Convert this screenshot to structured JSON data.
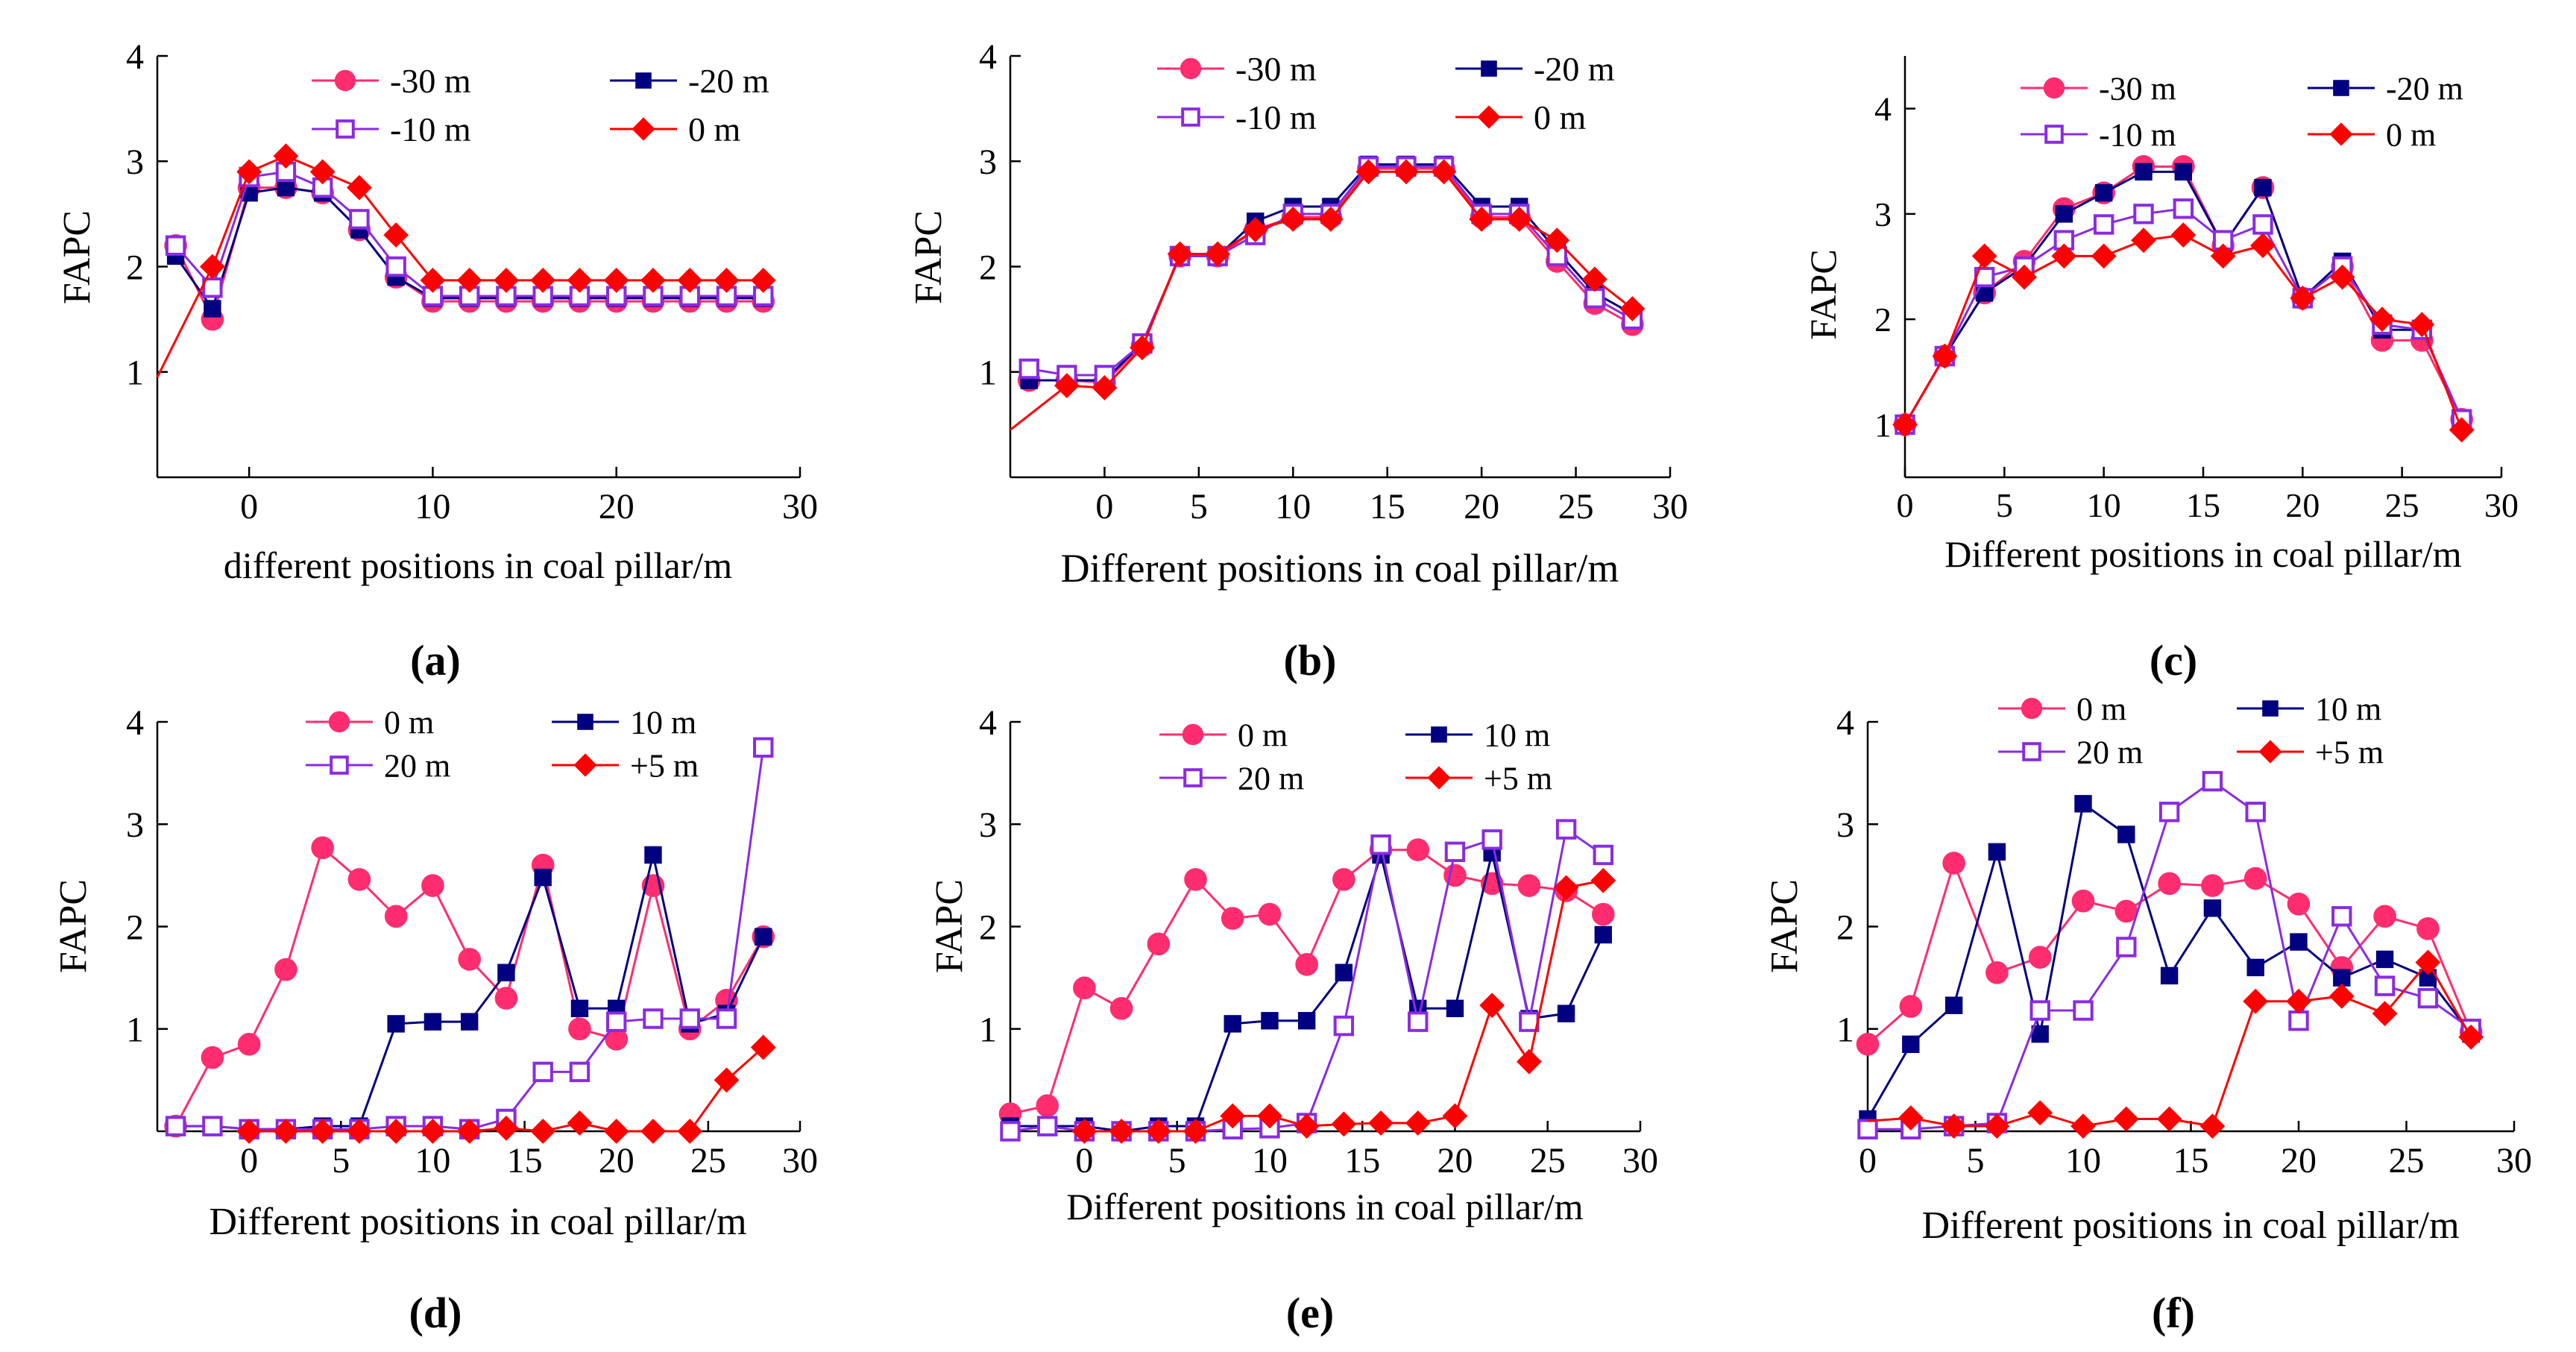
{
  "colors": {
    "series_0": "#ff2d6f",
    "series_1": "#000080",
    "series_2": "#8a2be2",
    "series_3": "#ff0000",
    "axis": "#000000"
  },
  "chart_data": [
    {
      "id": "a",
      "type": "line",
      "caption": "(a)",
      "xlabel": "different positions in coal pillar/m",
      "ylabel": "FAPC",
      "xlim": [
        -5,
        30
      ],
      "ylim": [
        0,
        4
      ],
      "xticks": [
        0,
        10,
        20,
        30
      ],
      "yticks": [
        1,
        2,
        3,
        4
      ],
      "series": [
        {
          "name": "-30 m",
          "marker": "circle",
          "x": [
            -4,
            -2,
            0,
            2,
            4,
            6,
            8,
            10,
            12,
            14,
            16,
            18,
            20,
            22,
            24,
            26,
            28
          ],
          "y": [
            2.2,
            1.5,
            2.75,
            2.75,
            2.7,
            2.35,
            1.9,
            1.67,
            1.67,
            1.67,
            1.67,
            1.67,
            1.67,
            1.67,
            1.67,
            1.67,
            1.67
          ]
        },
        {
          "name": "-20 m",
          "marker": "square",
          "x": [
            -4,
            -2,
            0,
            2,
            4,
            6,
            8,
            10,
            12,
            14,
            16,
            18,
            20,
            22,
            24,
            26,
            28
          ],
          "y": [
            2.1,
            1.6,
            2.7,
            2.75,
            2.7,
            2.35,
            1.9,
            1.7,
            1.7,
            1.7,
            1.7,
            1.7,
            1.7,
            1.7,
            1.7,
            1.7,
            1.7
          ]
        },
        {
          "name": "-10 m",
          "marker": "open-square",
          "x": [
            -4,
            -2,
            0,
            2,
            4,
            6,
            8,
            10,
            12,
            14,
            16,
            18,
            20,
            22,
            24,
            26,
            28
          ],
          "y": [
            2.2,
            1.8,
            2.85,
            2.9,
            2.75,
            2.45,
            2.0,
            1.72,
            1.72,
            1.72,
            1.72,
            1.72,
            1.72,
            1.72,
            1.72,
            1.72,
            1.72
          ]
        },
        {
          "name": "0 m",
          "marker": "diamond",
          "x": [
            -5,
            -2,
            0,
            2,
            4,
            6,
            8,
            10,
            12,
            14,
            16,
            18,
            20,
            22,
            24,
            26,
            28
          ],
          "y": [
            0.95,
            2.0,
            2.9,
            3.05,
            2.9,
            2.75,
            2.3,
            1.87,
            1.87,
            1.87,
            1.87,
            1.87,
            1.87,
            1.87,
            1.87,
            1.87,
            1.87
          ]
        }
      ]
    },
    {
      "id": "b",
      "type": "line",
      "caption": "(b)",
      "xlabel": "Different positions in coal pillar/m",
      "ylabel": "FAPC",
      "xlim": [
        -5,
        30
      ],
      "ylim": [
        0,
        4
      ],
      "xticks": [
        0,
        5,
        10,
        15,
        20,
        25,
        30
      ],
      "yticks": [
        1,
        2,
        3,
        4
      ],
      "series": [
        {
          "name": "-30 m",
          "marker": "circle",
          "x": [
            -4,
            -2,
            0,
            2,
            4,
            6,
            8,
            10,
            12,
            14,
            16,
            18,
            20,
            22,
            24,
            26,
            28
          ],
          "y": [
            0.92,
            0.92,
            0.9,
            1.25,
            2.1,
            2.1,
            2.35,
            2.47,
            2.47,
            2.93,
            2.93,
            2.93,
            2.47,
            2.47,
            2.05,
            1.65,
            1.45
          ]
        },
        {
          "name": "-20 m",
          "marker": "square",
          "x": [
            -4,
            -2,
            0,
            2,
            4,
            6,
            8,
            10,
            12,
            14,
            16,
            18,
            20,
            22,
            24,
            26,
            28
          ],
          "y": [
            0.92,
            0.92,
            0.92,
            1.27,
            2.1,
            2.1,
            2.43,
            2.57,
            2.57,
            2.97,
            2.97,
            2.97,
            2.57,
            2.57,
            2.15,
            1.75,
            1.55
          ]
        },
        {
          "name": "-10 m",
          "marker": "open-square",
          "x": [
            -4,
            -2,
            0,
            2,
            4,
            6,
            8,
            10,
            12,
            14,
            16,
            18,
            20,
            22,
            24,
            26,
            28
          ],
          "y": [
            1.03,
            0.97,
            0.97,
            1.27,
            2.1,
            2.1,
            2.3,
            2.5,
            2.5,
            2.95,
            2.95,
            2.95,
            2.5,
            2.5,
            2.1,
            1.7,
            1.5
          ]
        },
        {
          "name": "0 m",
          "marker": "diamond",
          "x": [
            -5,
            -2,
            0,
            2,
            4,
            6,
            8,
            10,
            12,
            14,
            16,
            18,
            20,
            22,
            24,
            26,
            28
          ],
          "y": [
            0.45,
            0.87,
            0.85,
            1.23,
            2.12,
            2.12,
            2.35,
            2.45,
            2.45,
            2.9,
            2.9,
            2.9,
            2.45,
            2.45,
            2.25,
            1.88,
            1.6
          ]
        }
      ]
    },
    {
      "id": "c",
      "type": "line",
      "caption": "(c)",
      "xlabel": "Different positions in coal pillar/m",
      "ylabel": "FAPC",
      "xlim": [
        0,
        30
      ],
      "ylim": [
        0.5,
        4.5
      ],
      "xticks": [
        0,
        5,
        10,
        15,
        20,
        25,
        30
      ],
      "yticks": [
        1,
        2,
        3,
        4
      ],
      "series": [
        {
          "name": "-30 m",
          "marker": "circle",
          "x": [
            0,
            2,
            4,
            6,
            8,
            10,
            12,
            14,
            16,
            18,
            20,
            22,
            24,
            26,
            28
          ],
          "y": [
            1.0,
            1.65,
            2.25,
            2.55,
            3.05,
            3.2,
            3.45,
            3.45,
            2.7,
            3.25,
            2.2,
            2.5,
            1.8,
            1.8,
            1.05
          ]
        },
        {
          "name": "-20 m",
          "marker": "square",
          "x": [
            0,
            2,
            4,
            6,
            8,
            10,
            12,
            14,
            16,
            18,
            20,
            22,
            24,
            26,
            28
          ],
          "y": [
            1.0,
            1.65,
            2.25,
            2.5,
            3.0,
            3.2,
            3.4,
            3.4,
            2.7,
            3.25,
            2.2,
            2.55,
            1.9,
            1.9,
            1.05
          ]
        },
        {
          "name": "-10 m",
          "marker": "open-square",
          "x": [
            0,
            2,
            4,
            6,
            8,
            10,
            12,
            14,
            16,
            18,
            20,
            22,
            24,
            26,
            28
          ],
          "y": [
            1.0,
            1.65,
            2.4,
            2.5,
            2.75,
            2.9,
            3.0,
            3.05,
            2.75,
            2.9,
            2.2,
            2.5,
            1.95,
            1.9,
            1.05
          ]
        },
        {
          "name": "0 m",
          "marker": "diamond",
          "x": [
            0,
            2,
            4,
            6,
            8,
            10,
            12,
            14,
            16,
            18,
            20,
            22,
            24,
            26,
            28
          ],
          "y": [
            1.0,
            1.65,
            2.6,
            2.4,
            2.6,
            2.6,
            2.75,
            2.8,
            2.6,
            2.7,
            2.2,
            2.4,
            2.0,
            1.95,
            0.95
          ]
        }
      ]
    },
    {
      "id": "d",
      "type": "line",
      "caption": "(d)",
      "xlabel": "Different positions in coal pillar/m",
      "ylabel": "FAPC",
      "xlim": [
        -5,
        30
      ],
      "ylim": [
        0,
        4
      ],
      "xticks": [
        0,
        5,
        10,
        15,
        20,
        25,
        30
      ],
      "yticks": [
        1,
        2,
        3,
        4
      ],
      "series": [
        {
          "name": "0 m",
          "marker": "circle",
          "x": [
            -4,
            -2,
            0,
            2,
            4,
            6,
            8,
            10,
            12,
            14,
            16,
            18,
            20,
            22,
            24,
            26,
            28
          ],
          "y": [
            0.05,
            0.72,
            0.85,
            1.58,
            2.77,
            2.46,
            2.1,
            2.4,
            1.68,
            1.3,
            2.6,
            1.0,
            0.9,
            2.4,
            1.0,
            1.28,
            1.9
          ]
        },
        {
          "name": "10 m",
          "marker": "square",
          "x": [
            -4,
            -2,
            0,
            2,
            4,
            6,
            8,
            10,
            12,
            14,
            16,
            18,
            20,
            22,
            24,
            26,
            28
          ],
          "y": [
            0.05,
            0.05,
            0.02,
            0.02,
            0.05,
            0.05,
            1.05,
            1.07,
            1.07,
            1.55,
            2.48,
            1.2,
            1.2,
            2.7,
            1.05,
            1.15,
            1.9
          ]
        },
        {
          "name": "20 m",
          "marker": "open-square",
          "x": [
            -4,
            -2,
            0,
            2,
            4,
            6,
            8,
            10,
            12,
            14,
            16,
            18,
            20,
            22,
            24,
            26,
            28
          ],
          "y": [
            0.05,
            0.05,
            0.02,
            0.02,
            0.02,
            0.02,
            0.05,
            0.05,
            0.02,
            0.12,
            0.58,
            0.58,
            1.07,
            1.1,
            1.1,
            1.1,
            3.75
          ]
        },
        {
          "name": "+5 m",
          "marker": "diamond",
          "x": [
            0,
            2,
            4,
            6,
            8,
            10,
            12,
            14,
            16,
            18,
            20,
            22,
            24,
            26,
            28
          ],
          "y": [
            0.0,
            0.0,
            0.0,
            0.0,
            0.0,
            0.0,
            0.0,
            0.03,
            0.0,
            0.08,
            0.0,
            0.0,
            0.0,
            0.5,
            0.82
          ]
        }
      ]
    },
    {
      "id": "e",
      "type": "line",
      "caption": "(e)",
      "xlabel": "Different positions in coal pillar/m",
      "ylabel": "FAPC",
      "xlim": [
        -4,
        30
      ],
      "ylim": [
        0,
        4
      ],
      "xticks": [
        0,
        5,
        10,
        15,
        20,
        25,
        30
      ],
      "yticks": [
        1,
        2,
        3,
        4
      ],
      "series": [
        {
          "name": "0 m",
          "marker": "circle",
          "x": [
            -4,
            -2,
            0,
            2,
            4,
            6,
            8,
            10,
            12,
            14,
            16,
            18,
            20,
            22,
            24,
            26,
            28
          ],
          "y": [
            0.17,
            0.25,
            1.4,
            1.2,
            1.83,
            2.46,
            2.08,
            2.12,
            1.63,
            2.46,
            2.75,
            2.75,
            2.5,
            2.42,
            2.4,
            2.35,
            2.12
          ]
        },
        {
          "name": "10 m",
          "marker": "square",
          "x": [
            -4,
            -2,
            0,
            2,
            4,
            6,
            8,
            10,
            12,
            14,
            16,
            18,
            20,
            22,
            24,
            26,
            28
          ],
          "y": [
            0.05,
            0.05,
            0.05,
            0.0,
            0.05,
            0.05,
            1.05,
            1.08,
            1.08,
            1.55,
            2.7,
            1.2,
            1.2,
            2.72,
            1.1,
            1.15,
            1.92
          ]
        },
        {
          "name": "20 m",
          "marker": "open-square",
          "x": [
            -4,
            -2,
            0,
            2,
            4,
            6,
            8,
            10,
            12,
            14,
            16,
            18,
            20,
            22,
            24,
            26,
            28
          ],
          "y": [
            0.0,
            0.05,
            0.0,
            0.0,
            0.0,
            0.0,
            0.02,
            0.03,
            0.08,
            1.03,
            2.8,
            1.07,
            2.73,
            2.85,
            1.07,
            2.95,
            2.7
          ]
        },
        {
          "name": "+5 m",
          "marker": "diamond",
          "x": [
            0,
            2,
            4,
            6,
            8,
            10,
            12,
            14,
            16,
            18,
            20,
            22,
            24,
            26,
            28
          ],
          "y": [
            0.0,
            0.0,
            0.0,
            0.0,
            0.15,
            0.15,
            0.05,
            0.07,
            0.08,
            0.08,
            0.15,
            1.23,
            0.68,
            2.38,
            2.45
          ]
        }
      ]
    },
    {
      "id": "f",
      "type": "line",
      "caption": "(f)",
      "xlabel": "Different positions in coal pillar/m",
      "ylabel": "FAPC",
      "xlim": [
        0,
        30
      ],
      "ylim": [
        0,
        4
      ],
      "xticks": [
        0,
        5,
        10,
        15,
        20,
        25,
        30
      ],
      "yticks": [
        1,
        2,
        3,
        4
      ],
      "series": [
        {
          "name": "0 m",
          "marker": "circle",
          "x": [
            0,
            2,
            4,
            6,
            8,
            10,
            12,
            14,
            16,
            18,
            20,
            22,
            24,
            26,
            28
          ],
          "y": [
            0.85,
            1.22,
            2.62,
            1.55,
            1.7,
            2.25,
            2.15,
            2.42,
            2.4,
            2.47,
            2.22,
            1.6,
            2.1,
            1.98,
            0.97
          ]
        },
        {
          "name": "10 m",
          "marker": "square",
          "x": [
            0,
            2,
            4,
            6,
            8,
            10,
            12,
            14,
            16,
            18,
            20,
            22,
            24,
            26,
            28
          ],
          "y": [
            0.12,
            0.85,
            1.23,
            2.73,
            0.95,
            3.2,
            2.9,
            1.52,
            2.18,
            1.6,
            1.85,
            1.5,
            1.68,
            1.5,
            0.95
          ]
        },
        {
          "name": "20 m",
          "marker": "open-square",
          "x": [
            0,
            2,
            4,
            6,
            8,
            10,
            12,
            14,
            16,
            18,
            20,
            22,
            24,
            26,
            28
          ],
          "y": [
            0.02,
            0.02,
            0.05,
            0.08,
            1.18,
            1.18,
            1.8,
            3.12,
            3.42,
            3.12,
            1.08,
            2.1,
            1.42,
            1.3,
            1.0
          ]
        },
        {
          "name": "+5 m",
          "marker": "diamond",
          "x": [
            0,
            2,
            4,
            6,
            8,
            10,
            12,
            14,
            16,
            18,
            20,
            22,
            24,
            26,
            28
          ],
          "y": [
            0.1,
            0.13,
            0.05,
            0.05,
            0.18,
            0.05,
            0.12,
            0.12,
            0.05,
            1.27,
            1.27,
            1.32,
            1.15,
            1.65,
            0.92
          ]
        }
      ]
    }
  ]
}
